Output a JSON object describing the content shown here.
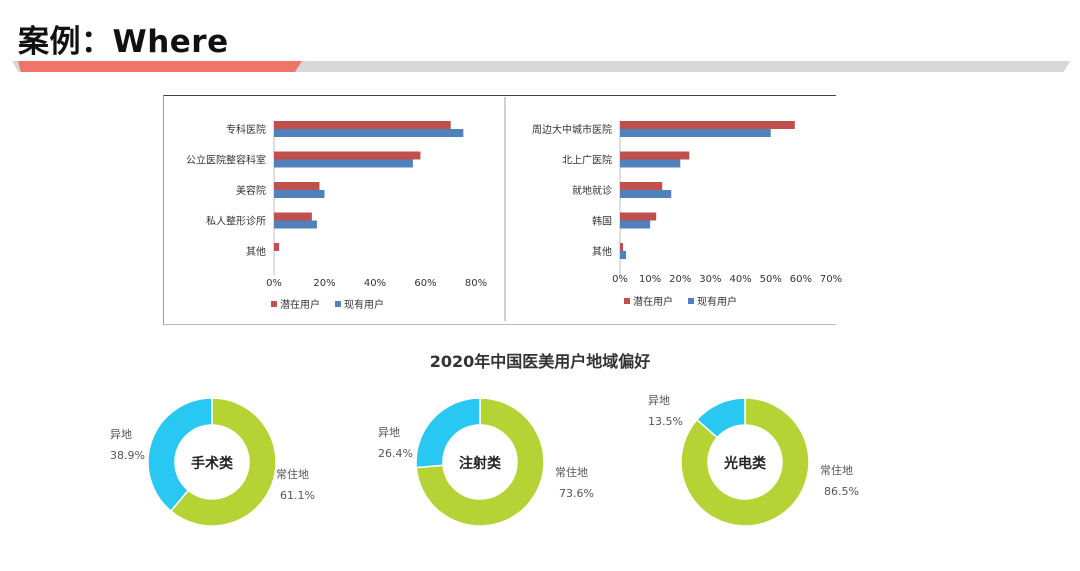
{
  "page": {
    "title": "案例：Where"
  },
  "colors": {
    "potential": "#c0504d",
    "existing": "#4f81bd",
    "donut_home": "#b5d334",
    "donut_away": "#29c8f2"
  },
  "chart_data": [
    {
      "type": "bar",
      "orientation": "horizontal",
      "categories": [
        "专科医院",
        "公立医院整容科室",
        "美容院",
        "私人整形诊所",
        "其他"
      ],
      "series": [
        {
          "name": "潜在用户",
          "values": [
            70,
            58,
            18,
            15,
            2
          ]
        },
        {
          "name": "现有用户",
          "values": [
            75,
            55,
            20,
            17,
            0
          ]
        }
      ],
      "xlim": [
        0,
        80
      ],
      "xticks": [
        "0%",
        "20%",
        "40%",
        "60%",
        "80%"
      ],
      "legend": "bottom"
    },
    {
      "type": "bar",
      "orientation": "horizontal",
      "categories": [
        "周边大中城市医院",
        "北上广医院",
        "就地就诊",
        "韩国",
        "其他"
      ],
      "series": [
        {
          "name": "潜在用户",
          "values": [
            58,
            23,
            14,
            12,
            1
          ]
        },
        {
          "name": "现有用户",
          "values": [
            50,
            20,
            17,
            10,
            2
          ]
        }
      ],
      "xlim": [
        0,
        70
      ],
      "xticks": [
        "0%",
        "10%",
        "20%",
        "30%",
        "40%",
        "50%",
        "60%",
        "70%"
      ],
      "legend": "bottom"
    },
    {
      "type": "pie",
      "title": "2020年中国医美用户地域偏好",
      "donuts": [
        {
          "center_label": "手术类",
          "slices": [
            {
              "label": "常住地",
              "value": 61.1,
              "text": "61.1%"
            },
            {
              "label": "异地",
              "value": 38.9,
              "text": "38.9%"
            }
          ]
        },
        {
          "center_label": "注射类",
          "slices": [
            {
              "label": "常住地",
              "value": 73.6,
              "text": "73.6%"
            },
            {
              "label": "异地",
              "value": 26.4,
              "text": "26.4%"
            }
          ]
        },
        {
          "center_label": "光电类",
          "slices": [
            {
              "label": "常住地",
              "value": 86.5,
              "text": "86.5%"
            },
            {
              "label": "异地",
              "value": 13.5,
              "text": "13.5%"
            }
          ]
        }
      ]
    }
  ]
}
